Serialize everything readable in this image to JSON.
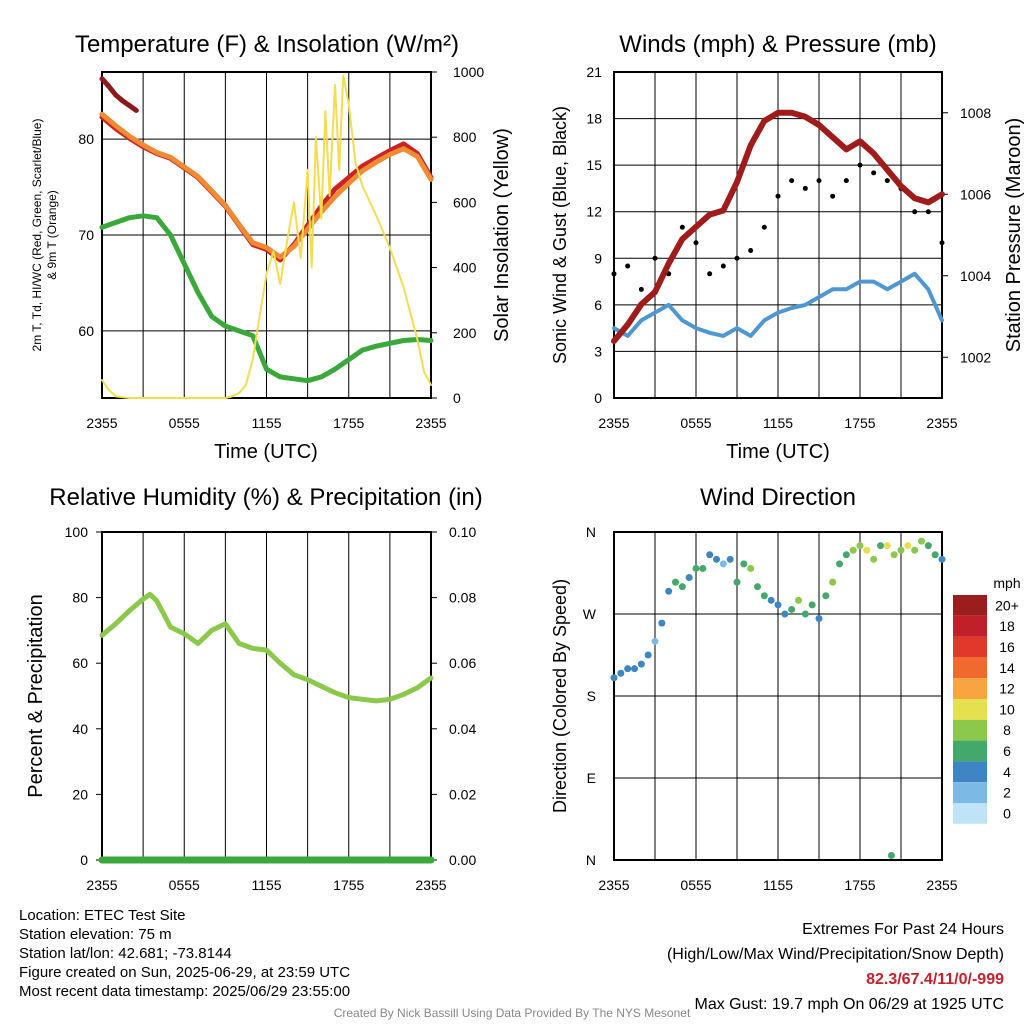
{
  "panels": {
    "temperature": {
      "title": "Temperature (F) & Insolation (W/m²)",
      "ylabel_left_line1": "2m T, Td, HI/WC (Red, Green, Scarlet/Blue)",
      "ylabel_left_line2": "& 9m T (Orange)",
      "ylabel_right": "Solar Insolation (Yellow)",
      "xlabel": "Time (UTC)"
    },
    "winds": {
      "title": "Winds (mph) & Pressure (mb)",
      "ylabel_left": "Sonic Wind & Gust (Blue, Black)",
      "ylabel_right": "Station Pressure (Maroon)",
      "xlabel": "Time (UTC)"
    },
    "humidity": {
      "title": "Relative Humidity (%) & Precipitation (in)",
      "ylabel_left": "Percent & Precipitation"
    },
    "direction": {
      "title": "Wind Direction",
      "ylabel_left": "Direction (Colored By Speed)",
      "legend_title": "mph"
    }
  },
  "chart_data": [
    {
      "type": "line",
      "title": "Temperature (F) & Insolation (W/m²)",
      "xlabel": "Time (UTC)",
      "x_ticks": [
        "2355",
        "0555",
        "1155",
        "1755",
        "2355"
      ],
      "xlim_hours": [
        0,
        24
      ],
      "y_left_ticks": [
        60,
        70,
        80
      ],
      "ylim_left": [
        53,
        87
      ],
      "y_right_ticks": [
        0,
        200,
        400,
        600,
        800,
        1000
      ],
      "ylim_right": [
        0,
        1000
      ],
      "series": [
        {
          "name": "2m T",
          "color": "#cc2222",
          "axis": "left",
          "x": [
            0,
            1,
            2,
            3,
            4,
            5,
            6,
            7,
            8,
            9,
            10,
            11,
            12,
            13,
            14,
            15,
            16,
            17,
            18,
            19,
            20,
            21,
            22,
            23,
            24
          ],
          "values": [
            82.3,
            81.1,
            80.1,
            79.2,
            78.5,
            78.0,
            77.0,
            76.0,
            74.5,
            73.0,
            71.0,
            69.0,
            68.5,
            67.4,
            69.0,
            71.0,
            73.0,
            74.8,
            76.0,
            77.2,
            78.0,
            78.8,
            79.5,
            78.5,
            76.0
          ]
        },
        {
          "name": "9m T",
          "color": "#f08a33",
          "axis": "left",
          "x": [
            0,
            1,
            2,
            3,
            4,
            5,
            6,
            7,
            8,
            9,
            10,
            11,
            12,
            13,
            14,
            15,
            16,
            17,
            18,
            19,
            20,
            21,
            22,
            23,
            24
          ],
          "values": [
            82.6,
            81.4,
            80.3,
            79.4,
            78.6,
            78.1,
            77.1,
            76.1,
            74.6,
            73.1,
            71.1,
            69.2,
            68.7,
            67.7,
            68.8,
            70.6,
            72.4,
            74.0,
            75.4,
            76.7,
            77.6,
            78.4,
            79.0,
            78.2,
            75.8
          ]
        },
        {
          "name": "Td",
          "color": "#3aa83a",
          "axis": "left",
          "x": [
            0,
            1,
            2,
            3,
            4,
            5,
            6,
            7,
            8,
            9,
            10,
            11,
            12,
            13,
            14,
            15,
            16,
            17,
            18,
            19,
            20,
            21,
            22,
            23,
            24
          ],
          "values": [
            70.8,
            71.3,
            71.8,
            72.0,
            71.8,
            70.0,
            67.0,
            64.0,
            61.5,
            60.5,
            60.0,
            59.5,
            56.0,
            55.2,
            55.0,
            54.8,
            55.2,
            56.0,
            57.0,
            58.0,
            58.4,
            58.7,
            59.0,
            59.1,
            59.0
          ]
        },
        {
          "name": "HI/WC",
          "color": "#8b1a1a",
          "axis": "left",
          "x": [
            0,
            0.5,
            1,
            1.5,
            2,
            2.5
          ],
          "values": [
            86.3,
            85.5,
            84.6,
            84.0,
            83.5,
            83.0
          ]
        },
        {
          "name": "Solar Insolation",
          "color": "#f5dc50",
          "axis": "right",
          "x": [
            0,
            0.5,
            1,
            2,
            3,
            4,
            5,
            6,
            7,
            8,
            9,
            9.5,
            10,
            10.5,
            11,
            11.5,
            12,
            12.5,
            13,
            13.5,
            14,
            14.5,
            15,
            15.3,
            15.6,
            16,
            16.3,
            16.6,
            17,
            17.3,
            17.6,
            18,
            18.5,
            19,
            20,
            21,
            22,
            22.5,
            23,
            23.5,
            24
          ],
          "values": [
            55,
            25,
            5,
            0,
            0,
            0,
            0,
            0,
            0,
            0,
            0,
            5,
            15,
            40,
            120,
            250,
            380,
            450,
            350,
            480,
            600,
            430,
            700,
            400,
            800,
            550,
            880,
            620,
            960,
            700,
            990,
            900,
            720,
            650,
            560,
            460,
            340,
            260,
            180,
            80,
            40
          ]
        }
      ]
    },
    {
      "type": "line",
      "title": "Winds (mph) & Pressure (mb)",
      "xlabel": "Time (UTC)",
      "x_ticks": [
        "2355",
        "0555",
        "1155",
        "1755",
        "2355"
      ],
      "xlim_hours": [
        0,
        24
      ],
      "y_left_ticks": [
        0,
        3,
        6,
        9,
        12,
        15,
        18,
        21
      ],
      "ylim_left": [
        0,
        21
      ],
      "y_right_ticks": [
        1002,
        1004,
        1006,
        1008
      ],
      "ylim_right": [
        1001.0,
        1009.0
      ],
      "series": [
        {
          "name": "Sonic Wind",
          "color": "#4f97d0",
          "axis": "left",
          "x": [
            0,
            1,
            2,
            3,
            4,
            5,
            6,
            7,
            8,
            9,
            10,
            11,
            12,
            13,
            14,
            15,
            16,
            17,
            18,
            19,
            20,
            21,
            22,
            23,
            24
          ],
          "values": [
            4.5,
            4.0,
            5.0,
            5.5,
            6.0,
            5.0,
            4.5,
            4.2,
            4.0,
            4.5,
            4.0,
            5.0,
            5.5,
            5.8,
            6.0,
            6.5,
            7.0,
            7.0,
            7.5,
            7.5,
            7.0,
            7.5,
            8.0,
            7.0,
            5.0
          ]
        },
        {
          "name": "Gust",
          "color": "#000000",
          "axis": "left",
          "marker": "dot",
          "x": [
            0,
            1,
            2,
            3,
            4,
            5,
            6,
            7,
            8,
            9,
            10,
            11,
            12,
            13,
            14,
            15,
            16,
            17,
            18,
            19,
            20,
            21,
            22,
            23,
            24
          ],
          "values": [
            8.0,
            8.5,
            7.0,
            9.0,
            8.0,
            11.0,
            10.0,
            8.0,
            8.5,
            9.0,
            9.5,
            11.0,
            13.0,
            14.0,
            13.5,
            14.0,
            13.0,
            14.0,
            15.0,
            14.5,
            14.0,
            13.5,
            12.0,
            12.0,
            10.0
          ]
        },
        {
          "name": "Station Pressure",
          "color": "#a01c1c",
          "axis": "right",
          "x": [
            0,
            1,
            2,
            3,
            4,
            5,
            6,
            7,
            8,
            9,
            10,
            11,
            12,
            13,
            14,
            15,
            16,
            17,
            18,
            19,
            20,
            21,
            22,
            23,
            24
          ],
          "values": [
            1002.4,
            1002.8,
            1003.3,
            1003.6,
            1004.3,
            1004.9,
            1005.2,
            1005.5,
            1005.6,
            1006.3,
            1007.2,
            1007.8,
            1008.0,
            1008.0,
            1007.9,
            1007.7,
            1007.4,
            1007.1,
            1007.3,
            1007.0,
            1006.6,
            1006.2,
            1005.9,
            1005.8,
            1006.0
          ]
        }
      ]
    },
    {
      "type": "line",
      "title": "Relative Humidity (%) & Precipitation (in)",
      "x_ticks": [
        "2355",
        "0555",
        "1155",
        "1755",
        "2355"
      ],
      "xlim_hours": [
        0,
        24
      ],
      "y_left_ticks": [
        0,
        20,
        40,
        60,
        80,
        100
      ],
      "ylim_left": [
        0,
        100
      ],
      "y_right_ticks": [
        "0.00",
        "0.02",
        "0.04",
        "0.06",
        "0.08",
        "0.10"
      ],
      "ylim_right": [
        0,
        0.1
      ],
      "series": [
        {
          "name": "Relative Humidity",
          "color": "#8cc84b",
          "axis": "left",
          "x": [
            0,
            1,
            2,
            3,
            3.5,
            4,
            4.5,
            5,
            6,
            7,
            8,
            9,
            10,
            11,
            12,
            13,
            14,
            15,
            16,
            17,
            18,
            19,
            20,
            21,
            22,
            23,
            24
          ],
          "values": [
            68.5,
            72.0,
            76.0,
            79.5,
            81.0,
            79.0,
            75.0,
            71.0,
            69.0,
            66.0,
            70.0,
            72.0,
            66.0,
            64.5,
            64.0,
            60.0,
            56.5,
            55.0,
            53.0,
            51.0,
            49.5,
            49.0,
            48.5,
            49.0,
            50.5,
            52.5,
            55.5
          ]
        },
        {
          "name": "Precipitation",
          "color": "#3aa83a",
          "axis": "right",
          "x": [
            0,
            24
          ],
          "values": [
            0,
            0
          ]
        }
      ]
    },
    {
      "type": "scatter",
      "title": "Wind Direction",
      "ylabel": "Direction (Colored By Speed)",
      "x_ticks": [
        "2355",
        "0555",
        "1155",
        "1755",
        "2355"
      ],
      "xlim_hours": [
        0,
        24
      ],
      "y_ticks": [
        "N",
        "E",
        "S",
        "W",
        "N"
      ],
      "ylim_degrees": [
        0,
        360
      ],
      "x": [
        0,
        0.5,
        1,
        1.5,
        2,
        2.5,
        3,
        3.5,
        4,
        4.5,
        5,
        5.5,
        6,
        6.5,
        7,
        7.5,
        8,
        8.5,
        9,
        9.5,
        10,
        10.5,
        11,
        11.5,
        12,
        12.5,
        13,
        13.5,
        14,
        14.5,
        15,
        15.5,
        16,
        16.5,
        17,
        17.5,
        18,
        18.5,
        19,
        19.5,
        20,
        20.5,
        21,
        21.5,
        22,
        22.5,
        23,
        23.5,
        24,
        20.3
      ],
      "directions": [
        200,
        205,
        210,
        210,
        215,
        225,
        240,
        260,
        295,
        305,
        300,
        310,
        320,
        320,
        335,
        330,
        325,
        330,
        305,
        325,
        320,
        300,
        290,
        285,
        280,
        270,
        275,
        285,
        270,
        280,
        265,
        290,
        305,
        325,
        335,
        340,
        345,
        340,
        330,
        345,
        345,
        335,
        340,
        345,
        340,
        350,
        345,
        335,
        330,
        5
      ],
      "speeds": [
        4,
        4,
        4,
        5,
        4,
        4,
        3,
        4,
        5,
        6,
        6,
        5,
        7,
        6,
        4,
        4,
        3,
        5,
        6,
        7,
        8,
        7,
        6,
        5,
        4,
        5,
        6,
        8,
        7,
        6,
        5,
        7,
        8,
        6,
        7,
        8,
        9,
        10,
        8,
        7,
        10,
        9,
        8,
        10,
        9,
        8,
        7,
        6,
        4,
        7
      ],
      "legend_title": "mph",
      "legend": [
        {
          "label": "20+",
          "color": "#9b1d1d"
        },
        {
          "label": "18",
          "color": "#c0202a"
        },
        {
          "label": "16",
          "color": "#e0392b"
        },
        {
          "label": "14",
          "color": "#f06a30"
        },
        {
          "label": "12",
          "color": "#f6a540"
        },
        {
          "label": "10",
          "color": "#e5e050"
        },
        {
          "label": "8",
          "color": "#8cc84b"
        },
        {
          "label": "6",
          "color": "#45a86b"
        },
        {
          "label": "4",
          "color": "#3d85c3"
        },
        {
          "label": "2",
          "color": "#7db9e5"
        },
        {
          "label": "0",
          "color": "#bfe4f7"
        }
      ]
    }
  ],
  "station_info": {
    "location": "Location: ETEC Test Site",
    "elevation": "Station elevation: 75 m",
    "latlon": "Station lat/lon: 42.681; -73.8144",
    "created": "Figure created on Sun, 2025-06-29, at 23:59 UTC",
    "recent": "Most recent data timestamp: 2025/06/29 23:55:00"
  },
  "extremes": {
    "title": "Extremes For Past 24 Hours",
    "subtitle": "(High/Low/Max Wind/Precipitation/Snow Depth)",
    "values": "82.3/67.4/11/0/-999",
    "max_gust": "Max Gust: 19.7 mph On 06/29 at 1925 UTC"
  },
  "credit": "Created By Nick Bassill Using Data Provided By The NYS Mesonet"
}
